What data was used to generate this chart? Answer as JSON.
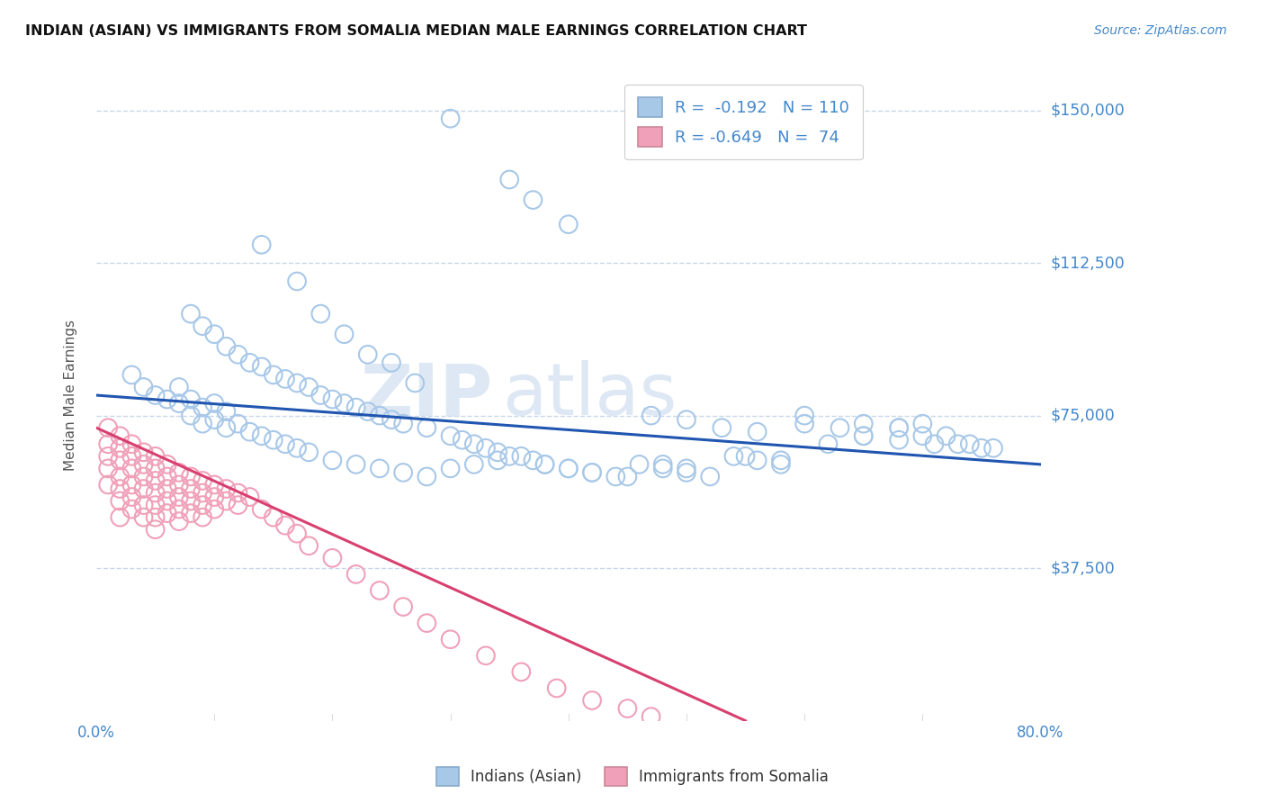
{
  "title": "INDIAN (ASIAN) VS IMMIGRANTS FROM SOMALIA MEDIAN MALE EARNINGS CORRELATION CHART",
  "source_text": "Source: ZipAtlas.com",
  "ylabel": "Median Male Earnings",
  "watermark": "ZIPAtlas",
  "xmin": 0.0,
  "xmax": 0.8,
  "ymin": 0,
  "ymax": 160000,
  "yticks": [
    0,
    37500,
    75000,
    112500,
    150000
  ],
  "ytick_labels": [
    "",
    "$37,500",
    "$75,000",
    "$112,500",
    "$150,000"
  ],
  "xticks": [
    0.0,
    0.8
  ],
  "xtick_labels": [
    "0.0%",
    "80.0%"
  ],
  "blue_color": "#a8c8e8",
  "pink_color": "#f0a0b8",
  "blue_line_color": "#2055b0",
  "pink_line_color": "#d84070",
  "tick_label_color": "#4488cc",
  "blue_scatter_x": [
    0.3,
    0.35,
    0.37,
    0.4,
    0.14,
    0.17,
    0.19,
    0.21,
    0.23,
    0.25,
    0.27,
    0.08,
    0.09,
    0.1,
    0.11,
    0.12,
    0.13,
    0.14,
    0.15,
    0.16,
    0.17,
    0.18,
    0.19,
    0.2,
    0.21,
    0.22,
    0.23,
    0.24,
    0.25,
    0.26,
    0.28,
    0.3,
    0.31,
    0.32,
    0.33,
    0.34,
    0.35,
    0.37,
    0.38,
    0.4,
    0.42,
    0.44,
    0.46,
    0.48,
    0.5,
    0.52,
    0.54,
    0.56,
    0.58,
    0.03,
    0.04,
    0.05,
    0.06,
    0.07,
    0.07,
    0.08,
    0.08,
    0.09,
    0.09,
    0.1,
    0.1,
    0.11,
    0.11,
    0.12,
    0.13,
    0.14,
    0.15,
    0.16,
    0.17,
    0.18,
    0.2,
    0.22,
    0.24,
    0.26,
    0.28,
    0.3,
    0.32,
    0.34,
    0.36,
    0.38,
    0.4,
    0.42,
    0.45,
    0.48,
    0.5,
    0.55,
    0.58,
    0.62,
    0.65,
    0.68,
    0.7,
    0.72,
    0.74,
    0.6,
    0.65,
    0.68,
    0.7,
    0.73,
    0.76,
    0.47,
    0.5,
    0.53,
    0.56,
    0.6,
    0.63,
    0.65,
    0.68,
    0.71,
    0.75
  ],
  "blue_scatter_y": [
    148000,
    133000,
    128000,
    122000,
    117000,
    108000,
    100000,
    95000,
    90000,
    88000,
    83000,
    100000,
    97000,
    95000,
    92000,
    90000,
    88000,
    87000,
    85000,
    84000,
    83000,
    82000,
    80000,
    79000,
    78000,
    77000,
    76000,
    75000,
    74000,
    73000,
    72000,
    70000,
    69000,
    68000,
    67000,
    66000,
    65000,
    64000,
    63000,
    62000,
    61000,
    60000,
    63000,
    62000,
    61000,
    60000,
    65000,
    64000,
    63000,
    85000,
    82000,
    80000,
    79000,
    82000,
    78000,
    79000,
    75000,
    77000,
    73000,
    78000,
    74000,
    76000,
    72000,
    73000,
    71000,
    70000,
    69000,
    68000,
    67000,
    66000,
    64000,
    63000,
    62000,
    61000,
    60000,
    62000,
    63000,
    64000,
    65000,
    63000,
    62000,
    61000,
    60000,
    63000,
    62000,
    65000,
    64000,
    68000,
    70000,
    72000,
    73000,
    70000,
    68000,
    75000,
    73000,
    72000,
    70000,
    68000,
    67000,
    75000,
    74000,
    72000,
    71000,
    73000,
    72000,
    70000,
    69000,
    68000,
    67000
  ],
  "pink_scatter_x": [
    0.01,
    0.01,
    0.01,
    0.01,
    0.01,
    0.02,
    0.02,
    0.02,
    0.02,
    0.02,
    0.02,
    0.02,
    0.03,
    0.03,
    0.03,
    0.03,
    0.03,
    0.03,
    0.04,
    0.04,
    0.04,
    0.04,
    0.04,
    0.04,
    0.05,
    0.05,
    0.05,
    0.05,
    0.05,
    0.05,
    0.05,
    0.06,
    0.06,
    0.06,
    0.06,
    0.06,
    0.07,
    0.07,
    0.07,
    0.07,
    0.07,
    0.08,
    0.08,
    0.08,
    0.08,
    0.09,
    0.09,
    0.09,
    0.09,
    0.1,
    0.1,
    0.1,
    0.11,
    0.11,
    0.12,
    0.12,
    0.13,
    0.14,
    0.15,
    0.16,
    0.17,
    0.18,
    0.2,
    0.22,
    0.24,
    0.26,
    0.28,
    0.3,
    0.33,
    0.36,
    0.39,
    0.42,
    0.45,
    0.47
  ],
  "pink_scatter_y": [
    72000,
    68000,
    65000,
    62000,
    58000,
    70000,
    67000,
    64000,
    60000,
    57000,
    54000,
    50000,
    68000,
    65000,
    62000,
    58000,
    55000,
    52000,
    66000,
    63000,
    60000,
    57000,
    53000,
    50000,
    65000,
    62000,
    59000,
    56000,
    53000,
    50000,
    47000,
    63000,
    60000,
    57000,
    54000,
    51000,
    61000,
    58000,
    55000,
    52000,
    49000,
    60000,
    57000,
    54000,
    51000,
    59000,
    56000,
    53000,
    50000,
    58000,
    55000,
    52000,
    57000,
    54000,
    56000,
    53000,
    55000,
    52000,
    50000,
    48000,
    46000,
    43000,
    40000,
    36000,
    32000,
    28000,
    24000,
    20000,
    16000,
    12000,
    8000,
    5000,
    3000,
    1000
  ],
  "blue_trend_x": [
    0.0,
    0.8
  ],
  "blue_trend_y": [
    80000,
    63000
  ],
  "pink_trend_x": [
    0.0,
    0.55
  ],
  "pink_trend_y": [
    72000,
    0
  ],
  "background_color": "#ffffff",
  "grid_color": "#c8d8ea",
  "figsize": [
    14.06,
    8.92
  ]
}
